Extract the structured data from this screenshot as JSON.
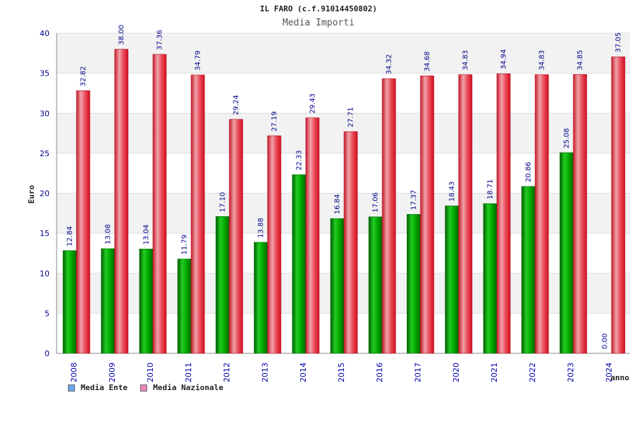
{
  "header": {
    "title": "IL FARO (c.f.91014450802)",
    "subtitle": "Media Importi"
  },
  "legend": {
    "items": [
      {
        "label": "Media Ente",
        "color": "#6aa7ee"
      },
      {
        "label": "Media Nazionale",
        "color": "#e788b7"
      }
    ]
  },
  "chart_data": {
    "type": "bar",
    "title": "Media Importi",
    "xlabel": "anno",
    "ylabel": "Euro",
    "ylim": [
      0,
      40
    ],
    "yticks": [
      0,
      5,
      10,
      15,
      20,
      25,
      30,
      35,
      40
    ],
    "categories": [
      "2008",
      "2009",
      "2010",
      "2011",
      "2012",
      "2013",
      "2014",
      "2015",
      "2016",
      "2017",
      "2020",
      "2021",
      "2022",
      "2023",
      "2024"
    ],
    "series": [
      {
        "name": "Media Ente",
        "color": "#00aa00",
        "values": [
          12.84,
          13.08,
          13.04,
          11.79,
          17.1,
          13.88,
          22.33,
          16.84,
          17.06,
          17.37,
          18.43,
          18.71,
          20.86,
          25.08,
          0.0
        ],
        "labels": [
          "12.84",
          "13.08",
          "13.04",
          "11.79",
          "17.10",
          "13.88",
          "22.33",
          "16.84",
          "17.06",
          "17.37",
          "18.43",
          "18.71",
          "20.86",
          "25.08",
          "0.00"
        ]
      },
      {
        "name": "Media Nazionale",
        "color": "#ee2233",
        "values": [
          32.82,
          38.0,
          37.36,
          34.79,
          29.24,
          27.19,
          29.43,
          27.71,
          34.32,
          34.68,
          34.83,
          34.94,
          34.83,
          34.85,
          37.05
        ],
        "labels": [
          "32.82",
          "38.00",
          "37.36",
          "34.79",
          "29.24",
          "27.19",
          "29.43",
          "27.71",
          "34.32",
          "34.68",
          "34.83",
          "34.94",
          "34.83",
          "34.85",
          "37.05"
        ]
      }
    ],
    "grid": true
  }
}
